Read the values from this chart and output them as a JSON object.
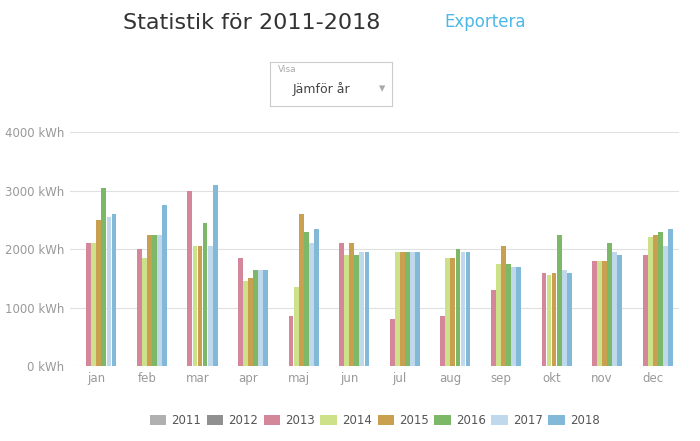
{
  "title": "Statistik för 2011-2018",
  "title_export": "Exportera",
  "months": [
    "jan",
    "feb",
    "mar",
    "apr",
    "maj",
    "jun",
    "jul",
    "aug",
    "sep",
    "okt",
    "nov",
    "dec"
  ],
  "years": [
    "2011",
    "2012",
    "2013",
    "2014",
    "2015",
    "2016",
    "2017",
    "2018"
  ],
  "colors": [
    "#b0b0b0",
    "#909090",
    "#d4879b",
    "#cde08a",
    "#c8a050",
    "#7cb868",
    "#c0d8ec",
    "#82b8d8"
  ],
  "data": {
    "2011": [
      0,
      0,
      0,
      0,
      0,
      0,
      0,
      0,
      0,
      0,
      0,
      0
    ],
    "2012": [
      0,
      0,
      0,
      0,
      0,
      0,
      0,
      0,
      0,
      0,
      0,
      0
    ],
    "2013": [
      2100,
      2000,
      3000,
      1850,
      850,
      2100,
      800,
      850,
      1300,
      1600,
      1800,
      1900
    ],
    "2014": [
      2100,
      1850,
      2050,
      1450,
      1350,
      1900,
      1950,
      1850,
      1750,
      1550,
      1800,
      2200
    ],
    "2015": [
      2500,
      2250,
      2050,
      1500,
      2600,
      2100,
      1950,
      1850,
      2050,
      1600,
      1800,
      2250
    ],
    "2016": [
      3050,
      2250,
      2450,
      1650,
      2300,
      1900,
      1950,
      2000,
      1750,
      2250,
      2100,
      2300
    ],
    "2017": [
      2550,
      2250,
      2050,
      1650,
      2100,
      1950,
      1950,
      1950,
      1700,
      1650,
      1950,
      2050
    ],
    "2018": [
      2600,
      2750,
      3100,
      1650,
      2350,
      1950,
      1950,
      1950,
      1700,
      1600,
      1900,
      2350
    ]
  },
  "ylim": [
    0,
    4000
  ],
  "yticks": [
    0,
    1000,
    2000,
    3000,
    4000
  ],
  "ytick_labels": [
    "0 kWh",
    "1000 kWh",
    "2000 kWh",
    "3000 kWh",
    "4000 kWh"
  ],
  "background_color": "#ffffff",
  "grid_color": "#e0e0e0",
  "title_color": "#333333",
  "export_color": "#4db8e8",
  "tick_color": "#999999"
}
